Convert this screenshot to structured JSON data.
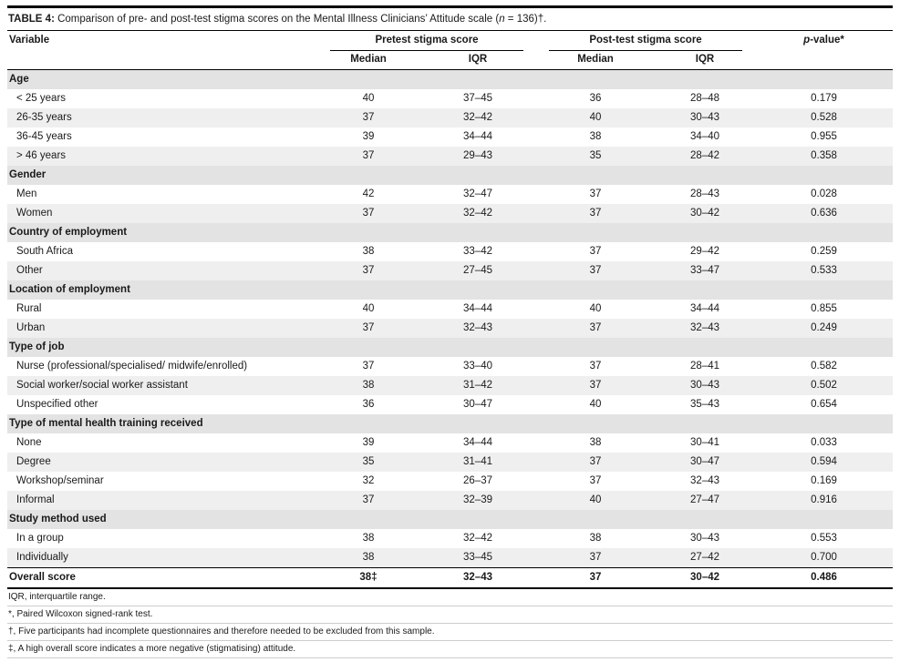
{
  "caption": {
    "label": "TABLE 4:",
    "body": " Comparison of pre- and post-test stigma scores on the Mental Illness Clinicians’ Attitude scale (",
    "n": "n",
    "suffix": " = 136)†."
  },
  "columns": {
    "variable": "Variable",
    "pretest_group": "Pretest stigma score",
    "posttest_group": "Post-test stigma score",
    "median": "Median",
    "iqr": "IQR",
    "p_italic": "p",
    "p_rest": "-value*"
  },
  "table": {
    "sections": [
      {
        "header": "Age",
        "rows": [
          {
            "variable": "< 25 years",
            "pre_median": "40",
            "pre_iqr": "37–45",
            "post_median": "36",
            "post_iqr": "28–48",
            "p": "0.179"
          },
          {
            "variable": "26-35 years",
            "pre_median": "37",
            "pre_iqr": "32–42",
            "post_median": "40",
            "post_iqr": "30–43",
            "p": "0.528"
          },
          {
            "variable": "36-45 years",
            "pre_median": "39",
            "pre_iqr": "34–44",
            "post_median": "38",
            "post_iqr": "34–40",
            "p": "0.955"
          },
          {
            "variable": "> 46 years",
            "pre_median": "37",
            "pre_iqr": "29–43",
            "post_median": "35",
            "post_iqr": "28–42",
            "p": "0.358"
          }
        ]
      },
      {
        "header": "Gender",
        "rows": [
          {
            "variable": "Men",
            "pre_median": "42",
            "pre_iqr": "32–47",
            "post_median": "37",
            "post_iqr": "28–43",
            "p": "0.028"
          },
          {
            "variable": "Women",
            "pre_median": "37",
            "pre_iqr": "32–42",
            "post_median": "37",
            "post_iqr": "30–42",
            "p": "0.636"
          }
        ]
      },
      {
        "header": "Country of employment",
        "rows": [
          {
            "variable": "South Africa",
            "pre_median": "38",
            "pre_iqr": "33–42",
            "post_median": "37",
            "post_iqr": "29–42",
            "p": "0.259"
          },
          {
            "variable": "Other",
            "pre_median": "37",
            "pre_iqr": "27–45",
            "post_median": "37",
            "post_iqr": "33–47",
            "p": "0.533"
          }
        ]
      },
      {
        "header": "Location of employment",
        "rows": [
          {
            "variable": "Rural",
            "pre_median": "40",
            "pre_iqr": "34–44",
            "post_median": "40",
            "post_iqr": "34–44",
            "p": "0.855"
          },
          {
            "variable": "Urban",
            "pre_median": "37",
            "pre_iqr": "32–43",
            "post_median": "37",
            "post_iqr": "32–43",
            "p": "0.249"
          }
        ]
      },
      {
        "header": "Type of job",
        "rows": [
          {
            "variable": "Nurse (professional/specialised/ midwife/enrolled)",
            "pre_median": "37",
            "pre_iqr": "33–40",
            "post_median": "37",
            "post_iqr": "28–41",
            "p": "0.582"
          },
          {
            "variable": "Social worker/social worker assistant",
            "pre_median": "38",
            "pre_iqr": "31–42",
            "post_median": "37",
            "post_iqr": "30–43",
            "p": "0.502"
          },
          {
            "variable": "Unspecified other",
            "pre_median": "36",
            "pre_iqr": "30–47",
            "post_median": "40",
            "post_iqr": "35–43",
            "p": "0.654"
          }
        ]
      },
      {
        "header": "Type of mental health training received",
        "rows": [
          {
            "variable": "None",
            "pre_median": "39",
            "pre_iqr": "34–44",
            "post_median": "38",
            "post_iqr": "30–41",
            "p": "0.033"
          },
          {
            "variable": "Degree",
            "pre_median": "35",
            "pre_iqr": "31–41",
            "post_median": "37",
            "post_iqr": "30–47",
            "p": "0.594"
          },
          {
            "variable": "Workshop/seminar",
            "pre_median": "32",
            "pre_iqr": "26–37",
            "post_median": "37",
            "post_iqr": "32–43",
            "p": "0.169"
          },
          {
            "variable": "Informal",
            "pre_median": "37",
            "pre_iqr": "32–39",
            "post_median": "40",
            "post_iqr": "27–47",
            "p": "0.916"
          }
        ]
      },
      {
        "header": "Study method used",
        "rows": [
          {
            "variable": "In a group",
            "pre_median": "38",
            "pre_iqr": "32–42",
            "post_median": "38",
            "post_iqr": "30–43",
            "p": "0.553"
          },
          {
            "variable": "Individually",
            "pre_median": "38",
            "pre_iqr": "33–45",
            "post_median": "37",
            "post_iqr": "27–42",
            "p": "0.700"
          }
        ]
      }
    ],
    "overall": {
      "variable": "Overall score",
      "pre_median": "38‡",
      "pre_iqr": "32–43",
      "post_median": "37",
      "post_iqr": "30–42",
      "p": "0.486"
    }
  },
  "footnotes": [
    "IQR, interquartile range.",
    "*, Paired Wilcoxon signed-rank test.",
    "†, Five participants had incomplete questionnaires and therefore needed to be excluded from this sample.",
    "‡, A high overall score indicates a more negative (stigmatising) attitude."
  ]
}
